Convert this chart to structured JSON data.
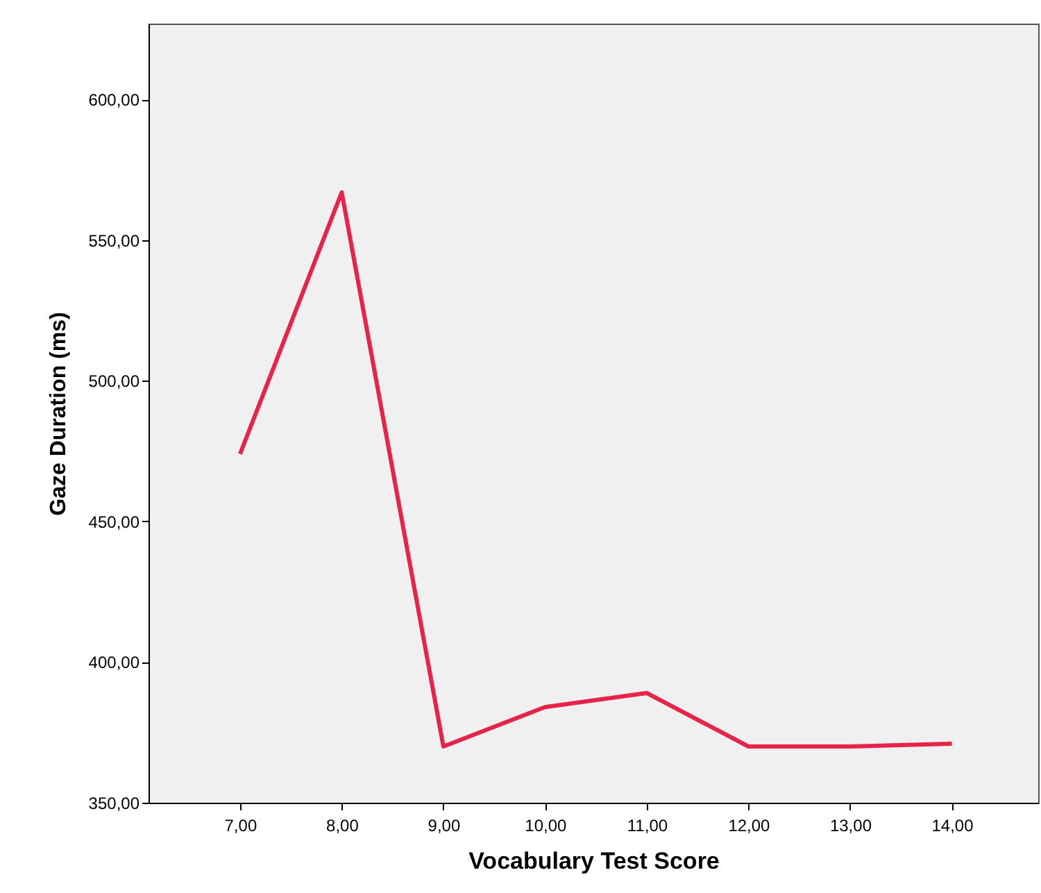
{
  "chart_data": {
    "type": "line",
    "xlabel": "Vocabulary Test Score",
    "ylabel": "Gaze Duration (ms)",
    "x": [
      7,
      8,
      9,
      10,
      11,
      12,
      13,
      14
    ],
    "series": [
      {
        "color": "#e8234a",
        "values": [
          474,
          567,
          370,
          384,
          389,
          370,
          370,
          371
        ]
      }
    ],
    "xlim": [
      6.1,
      14.85
    ],
    "ylim": [
      350,
      627
    ],
    "xticks": [
      {
        "value": 7,
        "label": "7,00"
      },
      {
        "value": 8,
        "label": "8,00"
      },
      {
        "value": 9,
        "label": "9,00"
      },
      {
        "value": 10,
        "label": "10,00"
      },
      {
        "value": 11,
        "label": "11,00"
      },
      {
        "value": 12,
        "label": "12,00"
      },
      {
        "value": 13,
        "label": "13,00"
      },
      {
        "value": 14,
        "label": "14,00"
      }
    ],
    "yticks": [
      {
        "value": 350,
        "label": "350,00"
      },
      {
        "value": 400,
        "label": "400,00"
      },
      {
        "value": 450,
        "label": "450,00"
      },
      {
        "value": 500,
        "label": "500,00"
      },
      {
        "value": 550,
        "label": "550,00"
      },
      {
        "value": 600,
        "label": "600,00"
      }
    ],
    "grid": false,
    "marker": "none",
    "line_style": "solid"
  }
}
